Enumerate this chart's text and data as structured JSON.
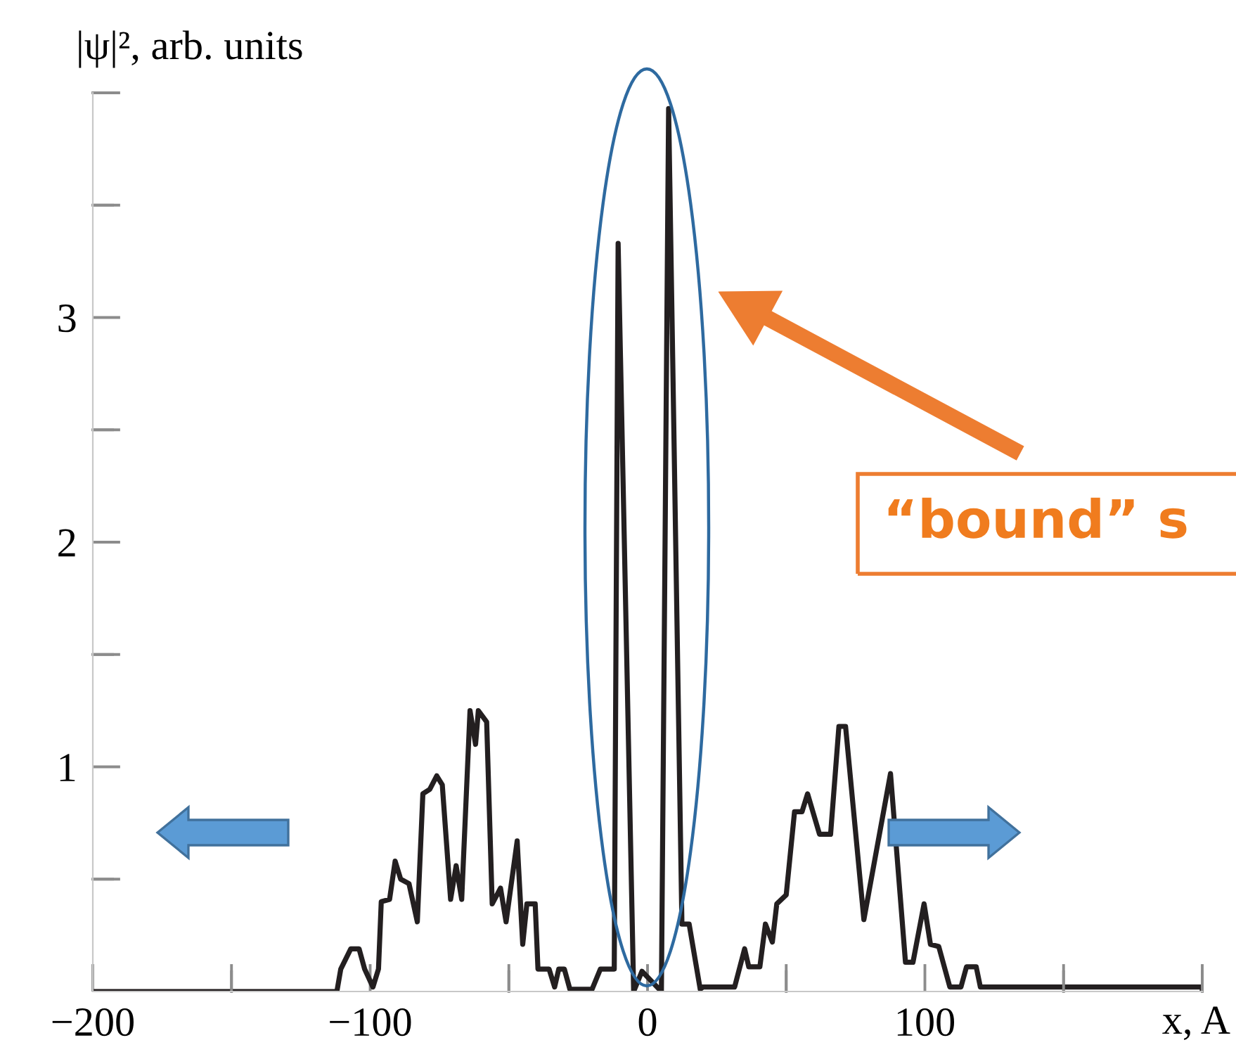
{
  "chart_data": {
    "type": "line",
    "xlabel": "x, A",
    "ylabel": "|ψ|², arb. units",
    "x": [
      -200,
      -112,
      -110.6,
      -107,
      -104,
      -102,
      -99,
      -97,
      -96,
      -93,
      -91,
      -89,
      -86,
      -83,
      -81,
      -78.5,
      -76,
      -74,
      -71,
      -69,
      -67,
      -64,
      -62,
      -61,
      -58,
      -56,
      -53,
      -51,
      -47,
      -45,
      -43.5,
      -40.5,
      -39.5,
      -35.5,
      -33.5,
      -32,
      -30,
      -28,
      -20,
      -17,
      -12,
      -10.6,
      -5,
      -2,
      5,
      7.6,
      12.4,
      15,
      19,
      20,
      31.4,
      35,
      36.5,
      40.5,
      42.5,
      45,
      46.6,
      50,
      53,
      55.7,
      57.7,
      62,
      66,
      69,
      71.4,
      78,
      87.6,
      93,
      95.7,
      99.7,
      102,
      105,
      109,
      113,
      115,
      118.5,
      120,
      200,
      200
    ],
    "series": [
      {
        "color": "#231f20",
        "values": [
          0,
          0,
          0.1,
          0.19,
          0.19,
          0.1,
          0.02,
          0.1,
          0.4,
          0.41,
          0.58,
          0.5,
          0.48,
          0.31,
          0.88,
          0.9,
          0.96,
          0.92,
          0.41,
          0.56,
          0.41,
          1.25,
          1.1,
          1.25,
          1.2,
          0.39,
          0.46,
          0.31,
          0.67,
          0.21,
          0.39,
          0.39,
          0.1,
          0.1,
          0.02,
          0.1,
          0.1,
          0.01,
          0.01,
          0.1,
          0.1,
          3.33,
          0,
          0.09,
          0,
          3.93,
          0.3,
          0.3,
          0.01,
          0.02,
          0.02,
          0.19,
          0.11,
          0.11,
          0.3,
          0.22,
          0.39,
          0.43,
          0.8,
          0.8,
          0.88,
          0.7,
          0.7,
          1.18,
          1.18,
          0.32,
          0.97,
          0.13,
          0.13,
          0.39,
          0.21,
          0.2,
          0.02,
          0.02,
          0.11,
          0.11,
          0.02,
          0.02,
          0
        ]
      }
    ],
    "xlim": [
      -200,
      200
    ],
    "ylim": [
      0,
      4
    ],
    "xticks": [
      -200,
      {
        "value": -150,
        "label": null
      },
      -100,
      {
        "value": -50,
        "label": null
      },
      0,
      {
        "value": 50,
        "label": null
      },
      100,
      {
        "value": 150,
        "label": null
      },
      {
        "value": 200,
        "label": null
      }
    ],
    "yticks": [
      {
        "value": 0.5,
        "label": null
      },
      1,
      {
        "value": 1.5,
        "label": null
      },
      2,
      {
        "value": 2.5,
        "label": null
      },
      3,
      {
        "value": 3.5,
        "label": null
      },
      {
        "value": 4,
        "label": null
      }
    ],
    "grid": false,
    "legend": false,
    "marker": "none",
    "line_style": "solid",
    "annotations": [
      "“bound” s"
    ]
  }
}
